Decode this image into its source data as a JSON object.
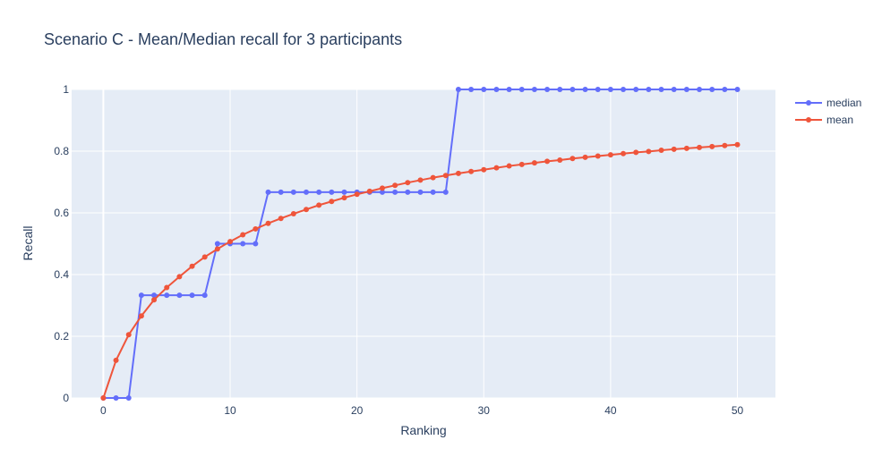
{
  "chart_data": {
    "type": "line",
    "title": "Scenario C - Mean/Median recall for 3 participants",
    "xlabel": "Ranking",
    "ylabel": "Recall",
    "xlim": [
      -2.5,
      53
    ],
    "ylim": [
      0,
      1
    ],
    "xticks": [
      0,
      10,
      20,
      30,
      40,
      50
    ],
    "xtick_labels": [
      "0",
      "10",
      "20",
      "30",
      "40",
      "50"
    ],
    "yticks": [
      0,
      0.2,
      0.4,
      0.6,
      0.8,
      1
    ],
    "ytick_labels": [
      "0",
      "0.2",
      "0.4",
      "0.6",
      "0.8",
      "1"
    ],
    "grid": true,
    "legend_position": "top-right",
    "x": [
      0,
      1,
      2,
      3,
      4,
      5,
      6,
      7,
      8,
      9,
      10,
      11,
      12,
      13,
      14,
      15,
      16,
      17,
      18,
      19,
      20,
      21,
      22,
      23,
      24,
      25,
      26,
      27,
      28,
      29,
      30,
      31,
      32,
      33,
      34,
      35,
      36,
      37,
      38,
      39,
      40,
      41,
      42,
      43,
      44,
      45,
      46,
      47,
      48,
      49,
      50
    ],
    "series": [
      {
        "name": "median",
        "color": "#636efa",
        "values": [
          0,
          0,
          0,
          0.333,
          0.333,
          0.333,
          0.333,
          0.333,
          0.333,
          0.5,
          0.5,
          0.5,
          0.5,
          0.667,
          0.667,
          0.667,
          0.667,
          0.667,
          0.667,
          0.667,
          0.667,
          0.667,
          0.667,
          0.667,
          0.667,
          0.667,
          0.667,
          0.667,
          1,
          1,
          1,
          1,
          1,
          1,
          1,
          1,
          1,
          1,
          1,
          1,
          1,
          1,
          1,
          1,
          1,
          1,
          1,
          1,
          1,
          1,
          1
        ]
      },
      {
        "name": "mean",
        "color": "#ef553b",
        "values": [
          0,
          0.122,
          0.205,
          0.266,
          0.318,
          0.358,
          0.393,
          0.427,
          0.457,
          0.483,
          0.507,
          0.529,
          0.548,
          0.566,
          0.582,
          0.597,
          0.611,
          0.625,
          0.637,
          0.649,
          0.66,
          0.67,
          0.68,
          0.689,
          0.698,
          0.706,
          0.714,
          0.721,
          0.728,
          0.734,
          0.74,
          0.746,
          0.752,
          0.757,
          0.762,
          0.767,
          0.771,
          0.776,
          0.78,
          0.784,
          0.788,
          0.792,
          0.796,
          0.799,
          0.803,
          0.806,
          0.809,
          0.812,
          0.815,
          0.818,
          0.821
        ]
      }
    ]
  }
}
